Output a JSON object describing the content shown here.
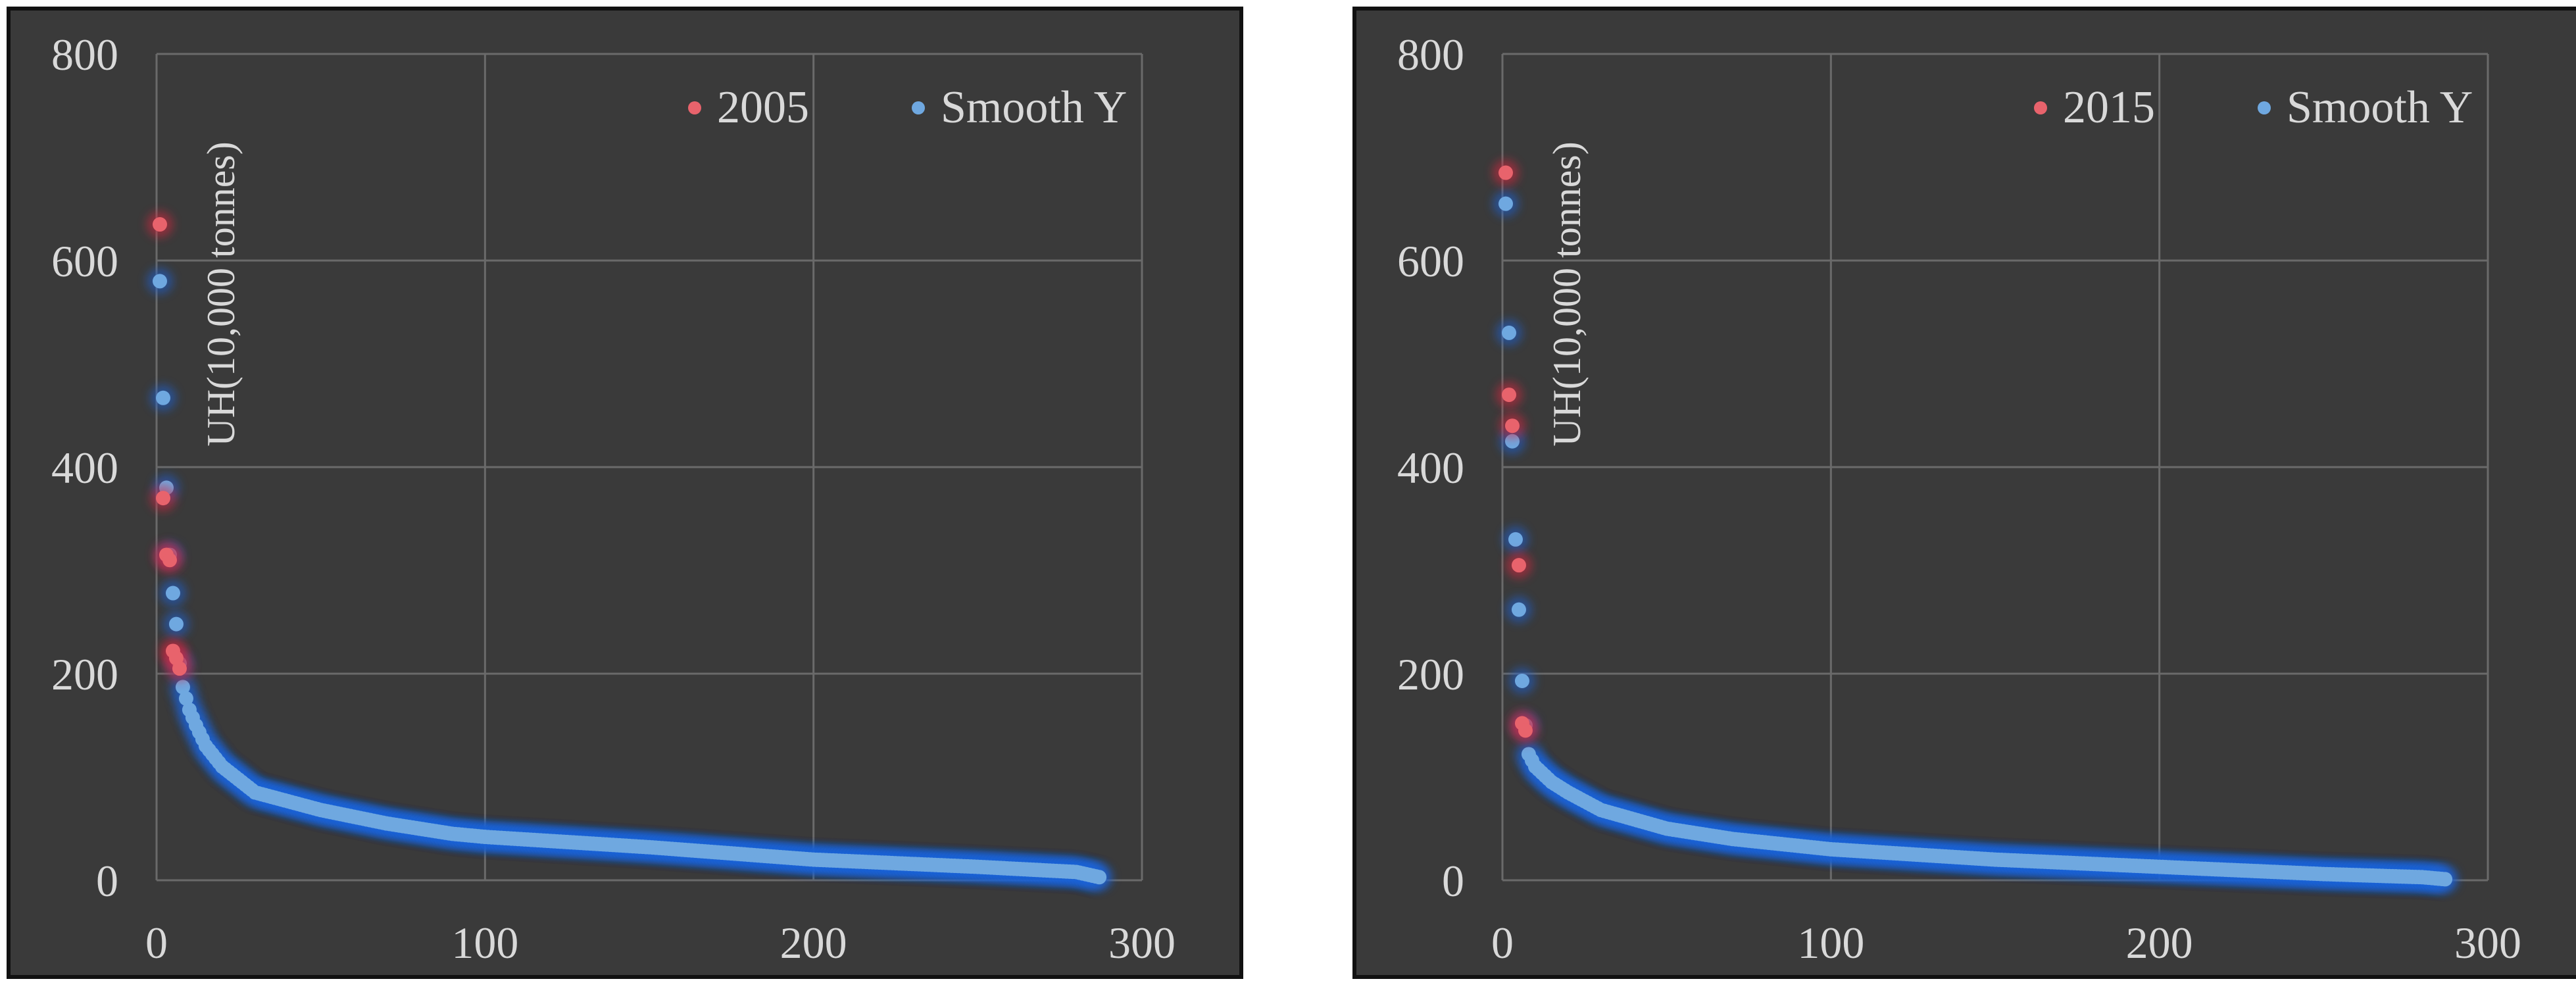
{
  "chart_data": [
    {
      "type": "scatter",
      "ylabel": "UH(10,000 tonnes)",
      "xlim": [
        0,
        300
      ],
      "ylim": [
        0,
        800
      ],
      "xticks": [
        0,
        100,
        200,
        300
      ],
      "yticks": [
        0,
        200,
        400,
        600,
        800
      ],
      "grid": true,
      "legend_position": "top-right",
      "series": [
        {
          "name": "2005",
          "color": "#e8636c",
          "x": [
            1,
            2,
            3,
            4,
            5,
            6,
            7
          ],
          "y": [
            635,
            370,
            315,
            310,
            222,
            215,
            205
          ]
        },
        {
          "name": "Smooth Y",
          "color": "#6fa8e0",
          "curve": {
            "n": 287,
            "knots": [
              [
                1,
                580
              ],
              [
                2,
                467
              ],
              [
                3,
                380
              ],
              [
                4,
                315
              ],
              [
                5,
                278
              ],
              [
                6,
                248
              ],
              [
                7,
                210
              ],
              [
                8,
                187
              ],
              [
                10,
                165
              ],
              [
                12,
                150
              ],
              [
                15,
                130
              ],
              [
                20,
                110
              ],
              [
                30,
                85
              ],
              [
                50,
                68
              ],
              [
                70,
                55
              ],
              [
                90,
                45
              ],
              [
                100,
                42
              ],
              [
                150,
                32
              ],
              [
                200,
                20
              ],
              [
                250,
                13
              ],
              [
                280,
                8
              ],
              [
                287,
                3
              ]
            ]
          }
        }
      ]
    },
    {
      "type": "scatter",
      "ylabel": "UH(10,000 tonnes)",
      "xlim": [
        0,
        300
      ],
      "ylim": [
        0,
        800
      ],
      "xticks": [
        0,
        100,
        200,
        300
      ],
      "yticks": [
        0,
        200,
        400,
        600,
        800
      ],
      "grid": true,
      "legend_position": "top-right",
      "series": [
        {
          "name": "2015",
          "color": "#e8636c",
          "x": [
            1,
            2,
            3,
            5,
            6,
            7
          ],
          "y": [
            685,
            470,
            440,
            305,
            152,
            145
          ]
        },
        {
          "name": "Smooth Y",
          "color": "#6fa8e0",
          "curve": {
            "n": 287,
            "knots": [
              [
                1,
                655
              ],
              [
                2,
                530
              ],
              [
                3,
                425
              ],
              [
                4,
                330
              ],
              [
                5,
                262
              ],
              [
                6,
                193
              ],
              [
                7,
                150
              ],
              [
                8,
                122
              ],
              [
                10,
                110
              ],
              [
                15,
                95
              ],
              [
                20,
                85
              ],
              [
                30,
                68
              ],
              [
                50,
                50
              ],
              [
                70,
                40
              ],
              [
                100,
                30
              ],
              [
                150,
                20
              ],
              [
                200,
                13
              ],
              [
                250,
                6
              ],
              [
                280,
                3
              ],
              [
                287,
                1
              ]
            ]
          }
        }
      ]
    }
  ]
}
